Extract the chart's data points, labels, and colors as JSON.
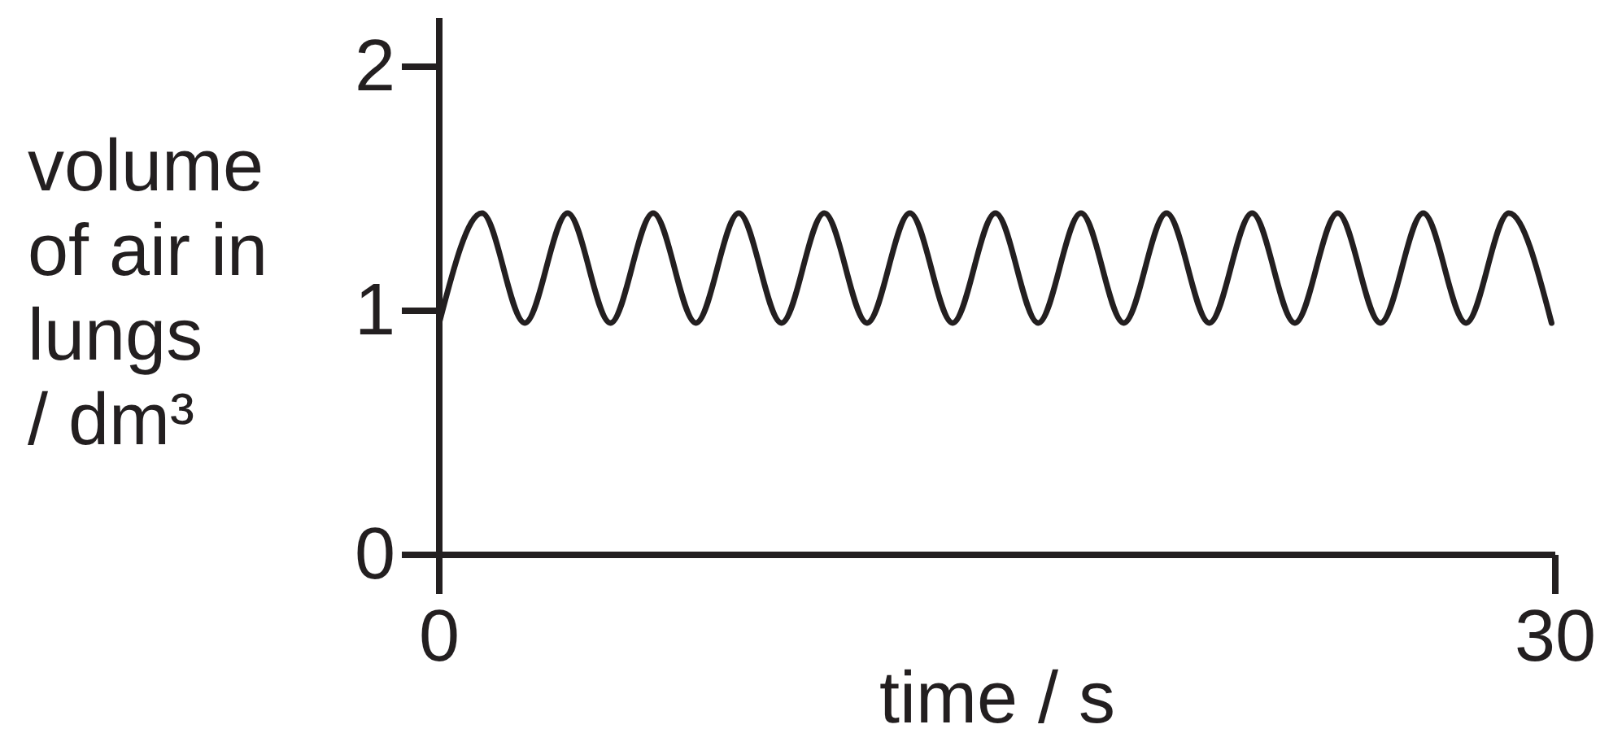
{
  "chart_data": {
    "type": "line",
    "xlabel": "time / s",
    "ylabel": "volume of air in lungs / dm³",
    "x": [
      0,
      1.15,
      2.3,
      3.45,
      4.6,
      5.75,
      6.9,
      8.05,
      9.2,
      10.35,
      11.5,
      12.65,
      13.8,
      14.95,
      16.1,
      17.25,
      18.4,
      19.55,
      20.7,
      21.85,
      23,
      24.15,
      25.3,
      26.45,
      27.6,
      28.75,
      29.9
    ],
    "series": [
      {
        "color": "#231f20",
        "values": [
          0.95,
          1.4,
          0.95,
          1.4,
          0.95,
          1.4,
          0.95,
          1.4,
          0.95,
          1.4,
          0.95,
          1.4,
          0.95,
          1.4,
          0.95,
          1.4,
          0.95,
          1.4,
          0.95,
          1.4,
          0.95,
          1.4,
          0.95,
          1.4,
          0.95,
          1.4,
          0.95
        ]
      }
    ],
    "xlim": [
      0,
      30
    ],
    "ylim": [
      0,
      2.2
    ],
    "xticks": [
      0,
      30
    ],
    "yticks": [
      0,
      1,
      2
    ],
    "line_style": "solid"
  }
}
